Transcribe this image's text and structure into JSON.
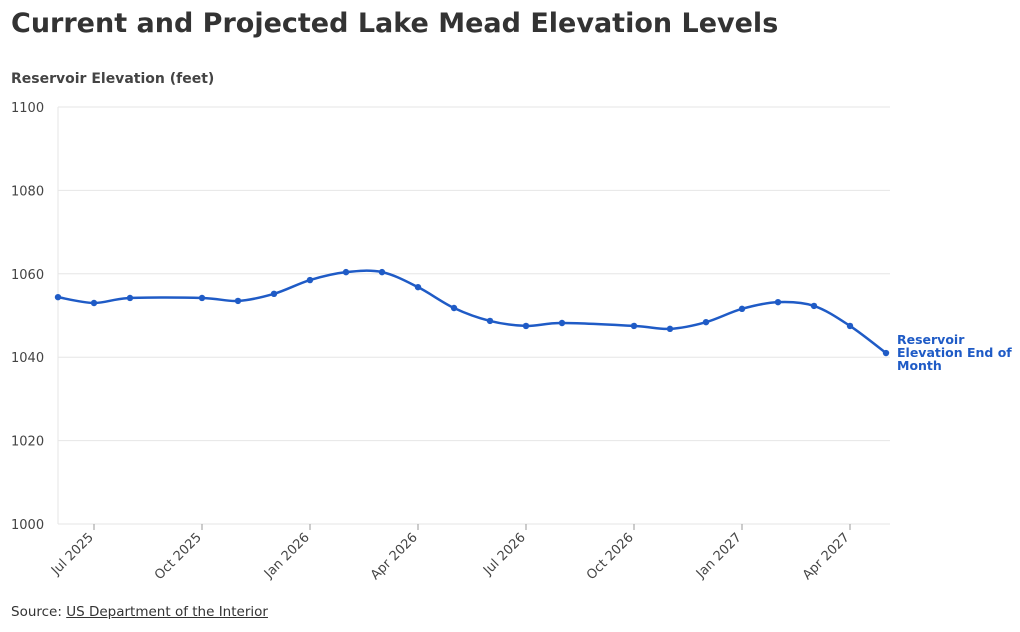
{
  "chart_data": {
    "type": "line",
    "title": "Current and Projected Lake Mead Elevation Levels",
    "y_axis_label": "Reservoir Elevation (feet)",
    "x": [
      "2025-06",
      "2025-07",
      "2025-08",
      "2025-10",
      "2025-11",
      "2025-12",
      "2026-01",
      "2026-02",
      "2026-03",
      "2026-04",
      "2026-05",
      "2026-06",
      "2026-07",
      "2026-08",
      "2026-10",
      "2026-11",
      "2026-12",
      "2027-01",
      "2027-02",
      "2027-03",
      "2027-04",
      "2027-05"
    ],
    "series": [
      {
        "name": "Reservoir Elevation End of Month",
        "color": "#1f5bc6",
        "values": [
          1054.4,
          1053.0,
          1054.2,
          1054.2,
          1053.5,
          1055.2,
          1058.5,
          1060.4,
          1060.4,
          1056.8,
          1051.8,
          1048.7,
          1047.5,
          1048.2,
          1047.5,
          1046.8,
          1048.4,
          1051.6,
          1053.2,
          1052.3,
          1047.5,
          1041.0
        ]
      }
    ],
    "xlim": [
      "2025-06",
      "2027-05"
    ],
    "xticks": [
      {
        "value": "2025-07",
        "label": "Jul 2025"
      },
      {
        "value": "2025-10",
        "label": "Oct 2025"
      },
      {
        "value": "2026-01",
        "label": "Jan 2026"
      },
      {
        "value": "2026-04",
        "label": "Apr 2026"
      },
      {
        "value": "2026-07",
        "label": "Jul 2026"
      },
      {
        "value": "2026-10",
        "label": "Oct 2026"
      },
      {
        "value": "2027-01",
        "label": "Jan 2027"
      },
      {
        "value": "2027-04",
        "label": "Apr 2027"
      }
    ],
    "ylim": [
      1000,
      1100
    ],
    "yticks": [
      1000,
      1020,
      1040,
      1060,
      1080,
      1100
    ],
    "grid": true,
    "source_label": "Source:",
    "source": "US Department of the Interior"
  }
}
